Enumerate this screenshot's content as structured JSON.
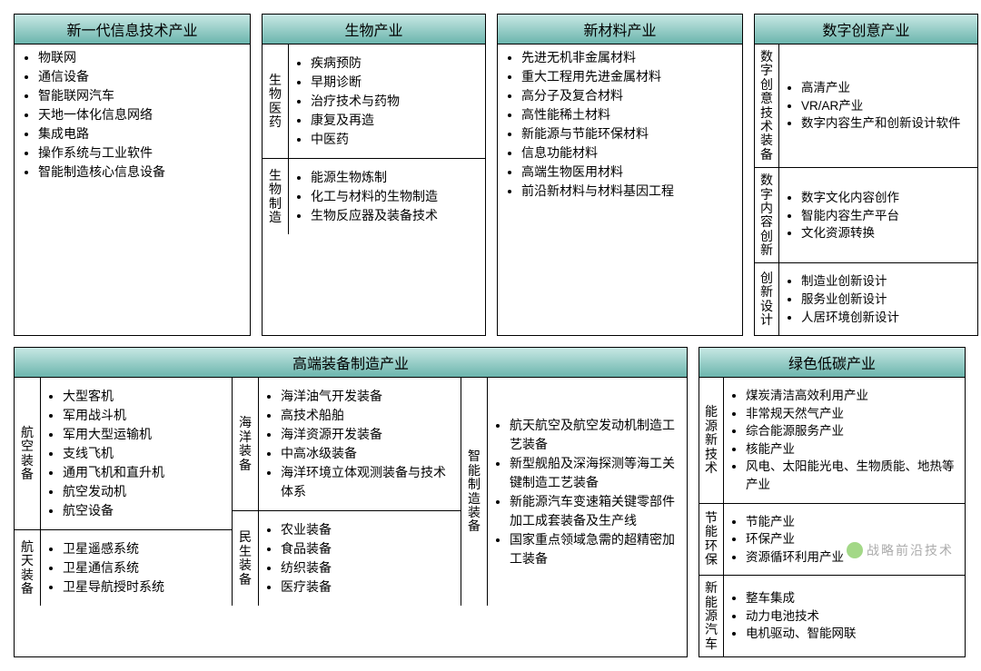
{
  "colors": {
    "header_gradient_top": "#c8e8e4",
    "header_gradient_bottom": "#6bb5ad",
    "border": "#000000",
    "background": "#ffffff",
    "text": "#000000"
  },
  "row1": {
    "p1": {
      "title": "新一代信息技术产业",
      "items": [
        "物联网",
        "通信设备",
        "智能联网汽车",
        "天地一体化信息网络",
        "集成电路",
        "操作系统与工业软件",
        "智能制造核心信息设备"
      ]
    },
    "p2": {
      "title": "生物产业",
      "sections": [
        {
          "label": "生物医药",
          "items": [
            "疾病预防",
            "早期诊断",
            "治疗技术与药物",
            "康复及再造",
            "中医药"
          ]
        },
        {
          "label": "生物制造",
          "items": [
            "能源生物炼制",
            "化工与材料的生物制造",
            "生物反应器及装备技术"
          ]
        }
      ]
    },
    "p3": {
      "title": "新材料产业",
      "items": [
        "先进无机非金属材料",
        "重大工程用先进金属材料",
        "高分子及复合材料",
        "高性能稀土材料",
        "新能源与节能环保材料",
        "信息功能材料",
        "高端生物医用材料",
        "前沿新材料与材料基因工程"
      ]
    },
    "p4": {
      "title": "数字创意产业",
      "sections": [
        {
          "label": "数字创意技术装备",
          "items": [
            "高清产业",
            "VR/AR产业",
            "数字内容生产和创新设计软件"
          ]
        },
        {
          "label": "数字内容创新",
          "items": [
            "数字文化内容创作",
            "智能内容生产平台",
            "文化资源转换"
          ]
        },
        {
          "label": "创新设计",
          "items": [
            "制造业创新设计",
            "服务业创新设计",
            "人居环境创新设计"
          ]
        }
      ]
    }
  },
  "row2": {
    "wide": {
      "title": "高端装备制造产业",
      "col1": [
        {
          "label": "航空装备",
          "items": [
            "大型客机",
            "军用战斗机",
            "军用大型运输机",
            "支线飞机",
            "通用飞机和直升机",
            "航空发动机",
            "航空设备"
          ]
        },
        {
          "label": "航天装备",
          "items": [
            "卫星遥感系统",
            "卫星通信系统",
            "卫星导航授时系统"
          ]
        }
      ],
      "col2": [
        {
          "label": "海洋装备",
          "items": [
            "海洋油气开发装备",
            "高技术船舶",
            "海洋资源开发装备",
            "中高冰级装备",
            "海洋环境立体观测装备与技术体系"
          ]
        },
        {
          "label": "民生装备",
          "items": [
            "农业装备",
            "食品装备",
            "纺织装备",
            "医疗装备"
          ]
        }
      ],
      "col3": {
        "label": "智能制造装备",
        "items": [
          "航天航空及航空发动机制造工艺装备",
          "新型舰船及深海探测等海工关键制造工艺装备",
          "新能源汽车变速箱关键零部件加工成套装备及生产线",
          "国家重点领域急需的超精密加工装备"
        ]
      }
    },
    "green": {
      "title": "绿色低碳产业",
      "sections": [
        {
          "label": "能源新技术",
          "items": [
            "煤炭清洁高效利用产业",
            "非常规天然气产业",
            "综合能源服务产业",
            "核能产业",
            "风电、太阳能光电、生物质能、地热等产业"
          ]
        },
        {
          "label": "节能环保",
          "items": [
            "节能产业",
            "环保产业",
            "资源循环利用产业"
          ]
        },
        {
          "label": "新能源汽车",
          "items": [
            "整车集成",
            "动力电池技术",
            "电机驱动、智能网联"
          ]
        }
      ]
    }
  },
  "watermark": "战略前沿技术"
}
